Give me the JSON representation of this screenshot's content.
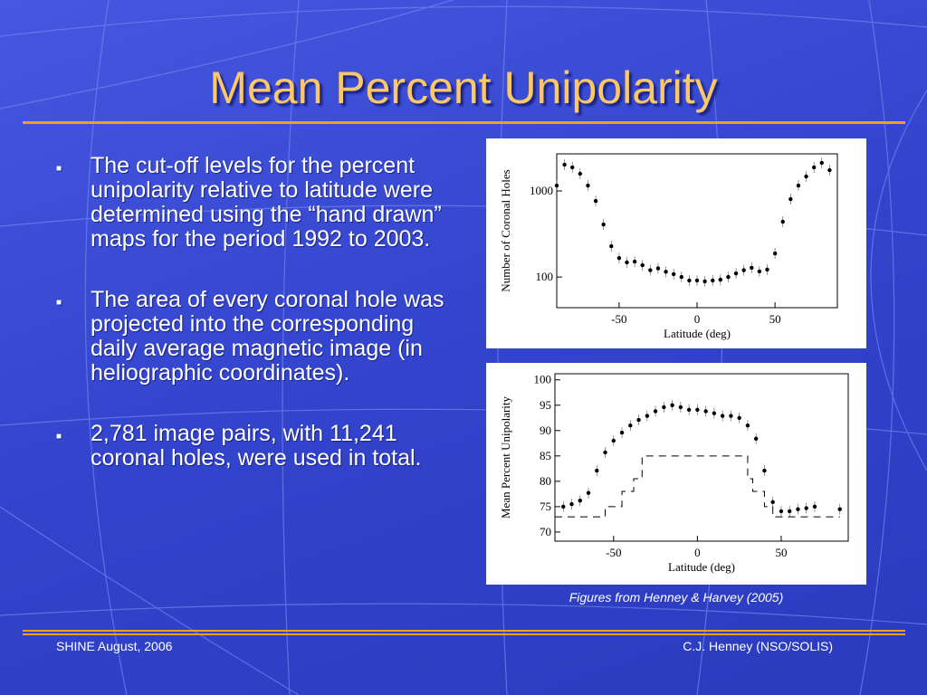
{
  "title": "Mean Percent Unipolarity",
  "bullets": [
    "The cut-off levels for the percent unipolarity relative to latitude were determined using the “hand drawn” maps for the period 1992 to 2003.",
    "The area of every coronal hole was projected into the corresponding daily average magnetic image (in heliographic coordinates).",
    "2,781 image pairs, with 11,241 coronal holes, were used in total."
  ],
  "caption": "Figures from Henney & Harvey (2005)",
  "footer": {
    "left": "SHINE August, 2006",
    "right": "C.J. Henney (NSO/SOLIS)"
  },
  "chart_data": [
    {
      "type": "scatter",
      "xlabel": "Latitude (deg)",
      "ylabel": "Number of Coronal Holes",
      "log_y": true,
      "color": "#000000",
      "x": [
        -90,
        -85,
        -80,
        -75,
        -70,
        -65,
        -60,
        -55,
        -50,
        -45,
        -40,
        -35,
        -30,
        -25,
        -20,
        -15,
        -10,
        -5,
        0,
        5,
        10,
        15,
        20,
        25,
        30,
        35,
        40,
        45,
        50,
        55,
        60,
        65,
        70,
        75,
        80,
        85
      ],
      "values": [
        1156,
        2020,
        1880,
        1585,
        1156,
        766,
        408,
        228,
        166,
        148,
        151,
        137,
        120,
        126,
        115,
        108,
        100,
        91,
        91,
        89,
        91,
        93,
        100,
        110,
        120,
        128,
        116,
        122,
        188,
        439,
        804,
        1156,
        1474,
        1880,
        2120,
        1745
      ],
      "xlim": [
        -90,
        90
      ],
      "ylim": [
        44,
        2700
      ],
      "xticks": [
        -50,
        0,
        50
      ],
      "yticks": [
        100,
        1000
      ]
    },
    {
      "type": "line",
      "xlabel": "Latitude (deg)",
      "ylabel": "Mean Percent Unipolarity",
      "series": [
        {
          "style": "dots",
          "color": "#000000",
          "x": [
            -80,
            -75,
            -70,
            -65,
            -60,
            -55,
            -50,
            -45,
            -40,
            -35,
            -30,
            -25,
            -20,
            -15,
            -10,
            -5,
            0,
            5,
            10,
            15,
            20,
            25,
            30,
            35,
            40,
            45,
            50,
            55,
            60,
            65,
            70,
            85
          ],
          "values": [
            75,
            75.5,
            76.2,
            77.7,
            82.1,
            85.7,
            88,
            89.6,
            91,
            92.1,
            92.9,
            93.8,
            94.6,
            95,
            94.6,
            94.1,
            94.1,
            93.8,
            93.4,
            92.9,
            92.9,
            92.5,
            91,
            88.4,
            82.1,
            75.9,
            74.1,
            74.1,
            74.5,
            74.7,
            75,
            74.5
          ]
        },
        {
          "style": "dashed",
          "color": "#000000",
          "x": [
            -85,
            -55,
            -55,
            -45,
            -45,
            -38,
            -38,
            -33,
            -33,
            30,
            30,
            33,
            33,
            40,
            40,
            45,
            45,
            85
          ],
          "values": [
            73,
            73,
            75,
            75,
            78,
            78,
            80.5,
            80.5,
            85,
            85,
            80.5,
            80.5,
            78,
            78,
            75,
            75,
            73,
            73
          ]
        }
      ],
      "xlim": [
        -85,
        90
      ],
      "ylim": [
        68.2,
        101.2
      ],
      "xticks": [
        -50,
        0,
        50
      ],
      "yticks": [
        70,
        75,
        80,
        85,
        90,
        95,
        100
      ]
    }
  ]
}
